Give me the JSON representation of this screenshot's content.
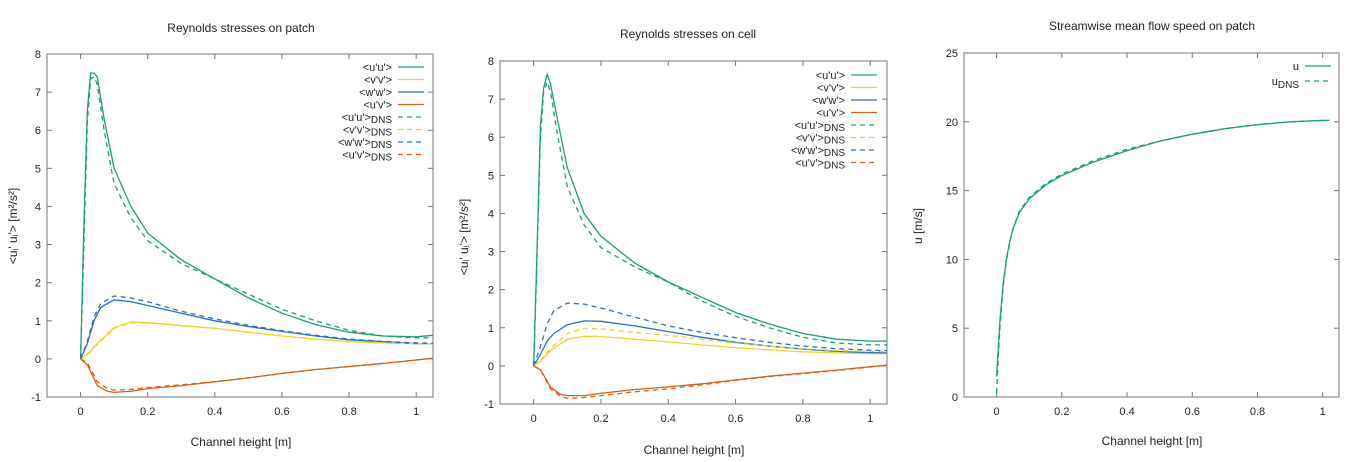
{
  "chart_data": [
    {
      "type": "line",
      "title": "Reynolds stresses on patch",
      "xlabel": "Channel height [m]",
      "ylabel": "<uᵢ' uᵢ'> [m²/s²]",
      "xlim": [
        -0.1,
        1.05
      ],
      "ylim": [
        -1,
        8
      ],
      "xticks": [
        0,
        0.2,
        0.4,
        0.6,
        0.8,
        1
      ],
      "xtick_labels": [
        "0",
        "0.2",
        "0.4",
        "0.6",
        "0.8",
        "1"
      ],
      "yticks": [
        -1,
        0,
        1,
        2,
        3,
        4,
        5,
        6,
        7,
        8
      ],
      "ytick_labels": [
        "-1",
        "0",
        "1",
        "2",
        "3",
        "4",
        "5",
        "6",
        "7",
        "8"
      ],
      "legend_position": "top-right",
      "series": [
        {
          "name": "<u'u'>",
          "color": "#1a9e77",
          "dash": false,
          "x": [
            0,
            0.01,
            0.02,
            0.03,
            0.04,
            0.05,
            0.07,
            0.1,
            0.15,
            0.2,
            0.3,
            0.4,
            0.5,
            0.6,
            0.7,
            0.8,
            0.9,
            1.0,
            1.05
          ],
          "y": [
            0,
            3.5,
            6.5,
            7.5,
            7.5,
            7.4,
            6.3,
            5.0,
            4.0,
            3.3,
            2.6,
            2.1,
            1.6,
            1.2,
            0.9,
            0.7,
            0.6,
            0.58,
            0.62
          ]
        },
        {
          "name": "<v'v'>",
          "color": "#e8d62a",
          "dash": false,
          "x": [
            0,
            0.02,
            0.05,
            0.1,
            0.15,
            0.2,
            0.3,
            0.4,
            0.5,
            0.6,
            0.7,
            0.8,
            0.9,
            1.0,
            1.05
          ],
          "y": [
            0,
            0.12,
            0.4,
            0.82,
            0.97,
            0.95,
            0.87,
            0.8,
            0.7,
            0.6,
            0.52,
            0.45,
            0.42,
            0.4,
            0.4
          ]
        },
        {
          "name": "<w'w'>",
          "color": "#2b6fc2",
          "dash": false,
          "x": [
            0,
            0.02,
            0.04,
            0.06,
            0.1,
            0.15,
            0.2,
            0.3,
            0.4,
            0.5,
            0.6,
            0.7,
            0.8,
            0.9,
            1.0,
            1.05
          ],
          "y": [
            0,
            0.4,
            1.0,
            1.35,
            1.55,
            1.5,
            1.4,
            1.2,
            1.0,
            0.85,
            0.72,
            0.6,
            0.5,
            0.45,
            0.4,
            0.4
          ]
        },
        {
          "name": "<u'v'>",
          "color": "#d95f1a",
          "dash": false,
          "x": [
            0,
            0.02,
            0.05,
            0.08,
            0.1,
            0.15,
            0.2,
            0.3,
            0.4,
            0.5,
            0.6,
            0.7,
            0.8,
            0.9,
            1.0,
            1.05
          ],
          "y": [
            0,
            -0.15,
            -0.7,
            -0.85,
            -0.88,
            -0.85,
            -0.78,
            -0.7,
            -0.6,
            -0.5,
            -0.38,
            -0.28,
            -0.2,
            -0.12,
            -0.03,
            0.02
          ]
        },
        {
          "name": "<u'u'>DNS",
          "color": "#1a9e77",
          "dash": true,
          "x": [
            0,
            0.01,
            0.02,
            0.03,
            0.04,
            0.05,
            0.07,
            0.1,
            0.15,
            0.2,
            0.3,
            0.4,
            0.5,
            0.6,
            0.7,
            0.8,
            0.9,
            1.0,
            1.05
          ],
          "y": [
            0,
            3.0,
            6.2,
            7.35,
            7.4,
            7.2,
            6.0,
            4.6,
            3.7,
            3.1,
            2.5,
            2.1,
            1.7,
            1.3,
            1.0,
            0.75,
            0.6,
            0.55,
            0.55
          ]
        },
        {
          "name": "<v'v'>DNS",
          "color": "#e8d62a",
          "dash": true,
          "x": [
            0,
            0.02,
            0.05,
            0.1,
            0.15,
            0.2,
            0.3,
            0.4,
            0.5,
            0.6,
            0.7,
            0.8,
            0.9,
            1.0,
            1.05
          ],
          "y": [
            0,
            0.1,
            0.38,
            0.8,
            0.95,
            0.95,
            0.88,
            0.8,
            0.7,
            0.6,
            0.52,
            0.45,
            0.42,
            0.4,
            0.4
          ]
        },
        {
          "name": "<w'w'>DNS",
          "color": "#2b6fc2",
          "dash": true,
          "x": [
            0,
            0.02,
            0.04,
            0.06,
            0.1,
            0.15,
            0.2,
            0.3,
            0.4,
            0.5,
            0.6,
            0.7,
            0.8,
            0.9,
            1.0,
            1.05
          ],
          "y": [
            0,
            0.45,
            1.1,
            1.45,
            1.65,
            1.6,
            1.5,
            1.25,
            1.05,
            0.88,
            0.74,
            0.62,
            0.52,
            0.46,
            0.42,
            0.41
          ]
        },
        {
          "name": "<u'v'>DNS",
          "color": "#d95f1a",
          "dash": true,
          "x": [
            0,
            0.02,
            0.05,
            0.08,
            0.1,
            0.15,
            0.2,
            0.3,
            0.4,
            0.5,
            0.6,
            0.7,
            0.8,
            0.9,
            1.0,
            1.05
          ],
          "y": [
            0,
            -0.1,
            -0.6,
            -0.78,
            -0.82,
            -0.8,
            -0.75,
            -0.68,
            -0.6,
            -0.5,
            -0.38,
            -0.28,
            -0.2,
            -0.12,
            -0.03,
            0.02
          ]
        }
      ]
    },
    {
      "type": "line",
      "title": "Reynolds stresses on cell",
      "xlabel": "Channel height [m]",
      "ylabel": "<uᵢ' uᵢ'> [m²/s²]",
      "xlim": [
        -0.1,
        1.05
      ],
      "ylim": [
        -1,
        8
      ],
      "xticks": [
        0,
        0.2,
        0.4,
        0.6,
        0.8,
        1
      ],
      "xtick_labels": [
        "0",
        "0.2",
        "0.4",
        "0.6",
        "0.8",
        "1"
      ],
      "yticks": [
        -1,
        0,
        1,
        2,
        3,
        4,
        5,
        6,
        7,
        8
      ],
      "ytick_labels": [
        "-1",
        "0",
        "1",
        "2",
        "3",
        "4",
        "5",
        "6",
        "7",
        "8"
      ],
      "legend_position": "top-right",
      "series": [
        {
          "name": "<u'u'>",
          "color": "#1a9e77",
          "dash": false,
          "x": [
            0,
            0.01,
            0.02,
            0.03,
            0.04,
            0.05,
            0.07,
            0.1,
            0.15,
            0.2,
            0.3,
            0.4,
            0.5,
            0.6,
            0.7,
            0.8,
            0.9,
            1.0,
            1.05
          ],
          "y": [
            0,
            3.0,
            6.3,
            7.3,
            7.65,
            7.4,
            6.5,
            5.2,
            4.0,
            3.4,
            2.7,
            2.2,
            1.8,
            1.4,
            1.1,
            0.85,
            0.7,
            0.65,
            0.65
          ]
        },
        {
          "name": "<v'v'>",
          "color": "#e8d62a",
          "dash": false,
          "x": [
            0,
            0.02,
            0.05,
            0.1,
            0.15,
            0.2,
            0.3,
            0.4,
            0.5,
            0.6,
            0.7,
            0.8,
            0.9,
            1.0,
            1.05
          ],
          "y": [
            0,
            0.12,
            0.4,
            0.7,
            0.78,
            0.77,
            0.7,
            0.63,
            0.55,
            0.48,
            0.42,
            0.37,
            0.34,
            0.32,
            0.32
          ]
        },
        {
          "name": "<w'w'>",
          "color": "#2b6fc2",
          "dash": false,
          "x": [
            0,
            0.02,
            0.04,
            0.06,
            0.1,
            0.15,
            0.2,
            0.3,
            0.4,
            0.5,
            0.6,
            0.7,
            0.8,
            0.9,
            1.0,
            1.05
          ],
          "y": [
            0,
            0.3,
            0.65,
            0.85,
            1.08,
            1.18,
            1.17,
            1.05,
            0.9,
            0.75,
            0.62,
            0.52,
            0.44,
            0.38,
            0.35,
            0.34
          ]
        },
        {
          "name": "<u'v'>",
          "color": "#d95f1a",
          "dash": false,
          "x": [
            0,
            0.02,
            0.05,
            0.08,
            0.1,
            0.15,
            0.2,
            0.3,
            0.4,
            0.5,
            0.6,
            0.7,
            0.8,
            0.9,
            1.0,
            1.05
          ],
          "y": [
            0,
            -0.1,
            -0.55,
            -0.75,
            -0.78,
            -0.78,
            -0.72,
            -0.62,
            -0.55,
            -0.47,
            -0.37,
            -0.27,
            -0.19,
            -0.11,
            -0.02,
            0.02
          ]
        },
        {
          "name": "<u'u'>DNS",
          "color": "#1a9e77",
          "dash": true,
          "x": [
            0,
            0.01,
            0.02,
            0.03,
            0.04,
            0.05,
            0.07,
            0.1,
            0.15,
            0.2,
            0.3,
            0.4,
            0.5,
            0.6,
            0.7,
            0.8,
            0.9,
            1.0,
            1.05
          ],
          "y": [
            0,
            2.8,
            6.0,
            7.2,
            7.45,
            7.2,
            6.1,
            4.7,
            3.7,
            3.1,
            2.6,
            2.2,
            1.7,
            1.3,
            1.0,
            0.75,
            0.6,
            0.55,
            0.55
          ]
        },
        {
          "name": "<v'v'>DNS",
          "color": "#e8d62a",
          "dash": true,
          "x": [
            0,
            0.02,
            0.05,
            0.1,
            0.15,
            0.2,
            0.3,
            0.4,
            0.5,
            0.6,
            0.7,
            0.8,
            0.9,
            1.0,
            1.05
          ],
          "y": [
            0,
            0.15,
            0.45,
            0.85,
            0.98,
            0.97,
            0.88,
            0.8,
            0.7,
            0.6,
            0.52,
            0.45,
            0.4,
            0.38,
            0.38
          ]
        },
        {
          "name": "<w'w'>DNS",
          "color": "#2b6fc2",
          "dash": true,
          "x": [
            0,
            0.02,
            0.04,
            0.06,
            0.1,
            0.15,
            0.2,
            0.3,
            0.4,
            0.5,
            0.6,
            0.7,
            0.8,
            0.9,
            1.0,
            1.05
          ],
          "y": [
            0,
            0.5,
            1.1,
            1.45,
            1.65,
            1.62,
            1.52,
            1.28,
            1.05,
            0.88,
            0.74,
            0.62,
            0.52,
            0.45,
            0.41,
            0.4
          ]
        },
        {
          "name": "<u'v'>DNS",
          "color": "#d95f1a",
          "dash": true,
          "x": [
            0,
            0.02,
            0.05,
            0.08,
            0.1,
            0.15,
            0.2,
            0.3,
            0.4,
            0.5,
            0.6,
            0.7,
            0.8,
            0.9,
            1.0,
            1.05
          ],
          "y": [
            0,
            -0.1,
            -0.6,
            -0.8,
            -0.85,
            -0.83,
            -0.78,
            -0.68,
            -0.6,
            -0.5,
            -0.38,
            -0.28,
            -0.2,
            -0.12,
            -0.03,
            0.02
          ]
        }
      ]
    },
    {
      "type": "line",
      "title": "Streamwise mean flow speed on patch",
      "xlabel": "Channel height [m]",
      "ylabel": "u [m/s]",
      "xlim": [
        -0.1,
        1.05
      ],
      "ylim": [
        0,
        25
      ],
      "xticks": [
        0,
        0.2,
        0.4,
        0.6,
        0.8,
        1
      ],
      "xtick_labels": [
        "0",
        "0.2",
        "0.4",
        "0.6",
        "0.8",
        "1"
      ],
      "yticks": [
        0,
        5,
        10,
        15,
        20,
        25
      ],
      "ytick_labels": [
        "0",
        "5",
        "10",
        "15",
        "20",
        "25"
      ],
      "legend_position": "top-right",
      "series": [
        {
          "name": "u",
          "color": "#1a9e77",
          "dash": false,
          "x": [
            0,
            0.005,
            0.01,
            0.02,
            0.03,
            0.04,
            0.05,
            0.07,
            0.1,
            0.15,
            0.2,
            0.3,
            0.4,
            0.5,
            0.6,
            0.7,
            0.8,
            0.9,
            1.0,
            1.02
          ],
          "y": [
            1.5,
            3.5,
            5.5,
            8.2,
            10.0,
            11.3,
            12.2,
            13.4,
            14.4,
            15.4,
            16.1,
            17.1,
            17.9,
            18.6,
            19.1,
            19.5,
            19.8,
            20.0,
            20.1,
            20.1
          ]
        },
        {
          "name": "uDNS",
          "color": "#1a9e77",
          "dash": true,
          "x": [
            0,
            0.005,
            0.01,
            0.02,
            0.03,
            0.04,
            0.05,
            0.07,
            0.1,
            0.15,
            0.2,
            0.3,
            0.4,
            0.5,
            0.6,
            0.7,
            0.8,
            0.9,
            1.0,
            1.02
          ],
          "y": [
            0.3,
            2.8,
            5.0,
            8.0,
            9.9,
            11.2,
            12.2,
            13.5,
            14.5,
            15.5,
            16.2,
            17.2,
            18.0,
            18.6,
            19.1,
            19.5,
            19.8,
            20.0,
            20.1,
            20.1
          ]
        }
      ]
    }
  ],
  "legend_labels": {
    "uu": "<u'u'>",
    "vv": "<v'v'>",
    "ww": "<w'w'>",
    "uv": "<u'v'>",
    "dns_suffix": "DNS",
    "u": "u",
    "u_dns_base": "u",
    "u_dns_sub": "DNS"
  }
}
